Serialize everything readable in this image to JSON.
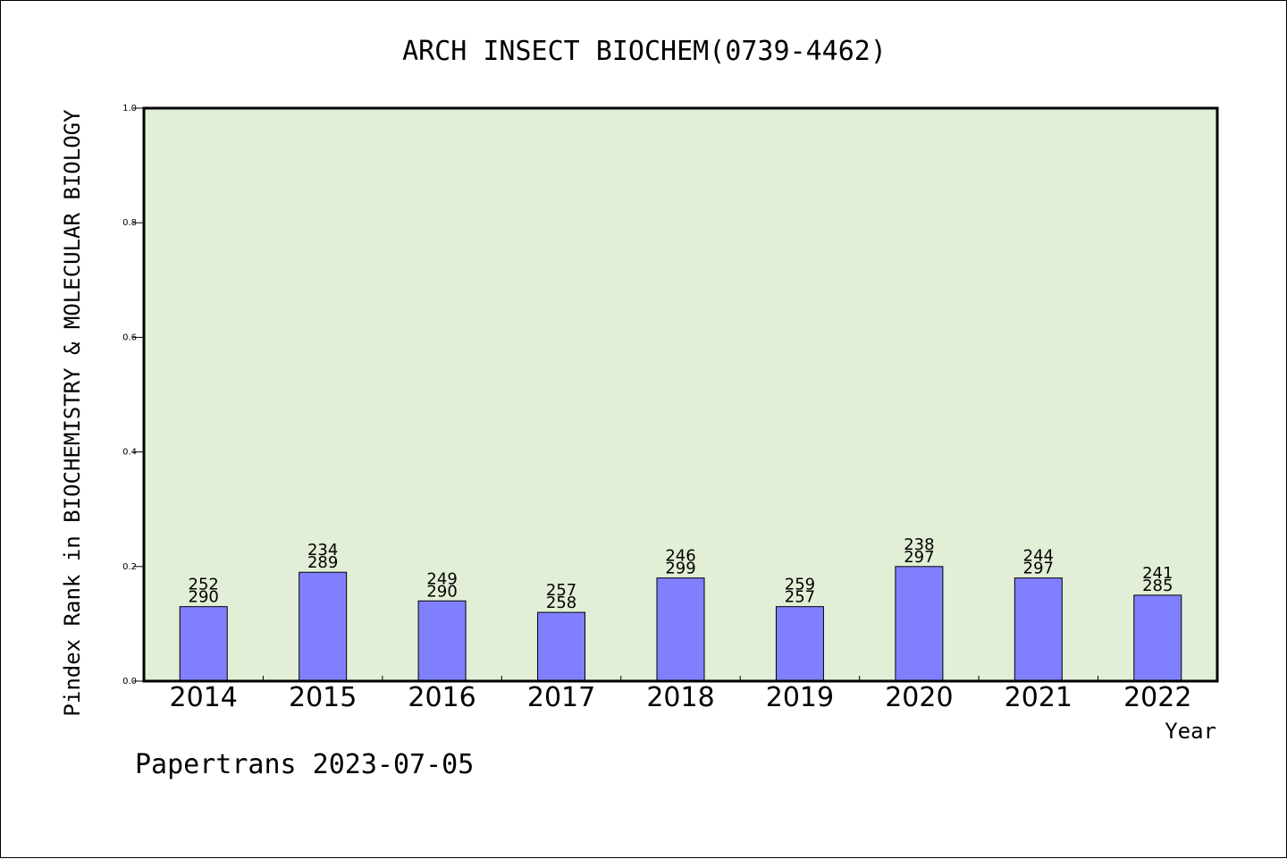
{
  "chart_data": {
    "type": "bar",
    "title": "ARCH INSECT BIOCHEM(0739-4462)",
    "xlabel": "Year",
    "ylabel": "Pindex Rank in BIOCHEMISTRY & MOLECULAR BIOLOGY",
    "categories": [
      "2014",
      "2015",
      "2016",
      "2017",
      "2018",
      "2019",
      "2020",
      "2021",
      "2022"
    ],
    "values": [
      0.13,
      0.19,
      0.14,
      0.12,
      0.18,
      0.13,
      0.2,
      0.18,
      0.15
    ],
    "labels_top": [
      "252",
      "234",
      "249",
      "257",
      "246",
      "259",
      "238",
      "244",
      "241"
    ],
    "labels_bottom": [
      "290",
      "289",
      "290",
      "258",
      "299",
      "257",
      "297",
      "297",
      "285"
    ],
    "ylim": [
      0,
      1.0
    ],
    "yticks": [
      "0.0",
      "0.2",
      "0.4",
      "0.6",
      "0.8",
      "1.0"
    ],
    "grid": false,
    "colors": {
      "plot_bg": "#e2efd6",
      "bar": "#8080ff",
      "axis": "#000000"
    }
  },
  "footer": "Papertrans 2023-07-05"
}
